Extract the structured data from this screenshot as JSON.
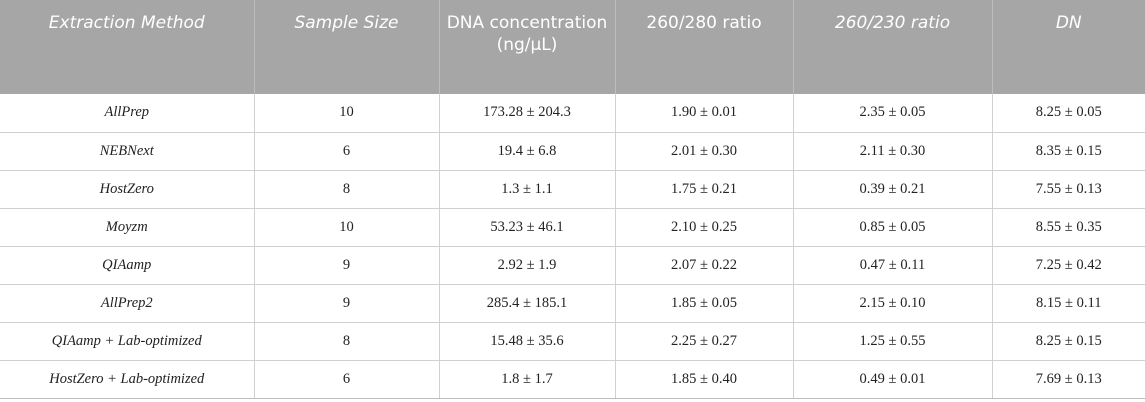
{
  "table": {
    "headers": [
      {
        "text": "Extraction Method",
        "italic": true
      },
      {
        "text": "Sample Size",
        "italic": true
      },
      {
        "text": "DNA concentration (ng/μL)",
        "italic": false
      },
      {
        "text": "260/280 ratio",
        "italic": false
      },
      {
        "text": "260/230 ratio",
        "italic": true
      },
      {
        "text": "DN",
        "italic": true
      }
    ],
    "rows": [
      [
        "AllPrep",
        "10",
        "173.28 ± 204.3",
        "1.90 ± 0.01",
        "2.35 ± 0.05",
        "8.25 ± 0.05"
      ],
      [
        "NEBNext",
        "6",
        "19.4 ± 6.8",
        "2.01 ± 0.30",
        "2.11 ± 0.30",
        "8.35 ± 0.15"
      ],
      [
        "HostZero",
        "8",
        "1.3 ± 1.1",
        "1.75 ± 0.21",
        "0.39 ± 0.21",
        "7.55 ± 0.13"
      ],
      [
        "Moyzm",
        "10",
        "53.23 ± 46.1",
        "2.10 ± 0.25",
        "0.85 ± 0.05",
        "8.55 ± 0.35"
      ],
      [
        "QIAamp",
        "9",
        "2.92 ± 1.9",
        "2.07 ± 0.22",
        "0.47 ± 0.11",
        "7.25 ± 0.42"
      ],
      [
        "AllPrep2",
        "9",
        "285.4 ± 185.1",
        "1.85 ± 0.05",
        "2.15 ± 0.10",
        "8.15 ± 0.11"
      ],
      [
        "QIAamp + Lab-optimized",
        "8",
        "15.48 ± 35.6",
        "2.25 ± 0.27",
        "1.25 ± 0.55",
        "8.25 ± 0.15"
      ],
      [
        "HostZero + Lab-optimized",
        "6",
        "1.8 ± 1.7",
        "1.85 ± 0.40",
        "0.49 ± 0.01",
        "7.69 ± 0.13"
      ]
    ]
  }
}
